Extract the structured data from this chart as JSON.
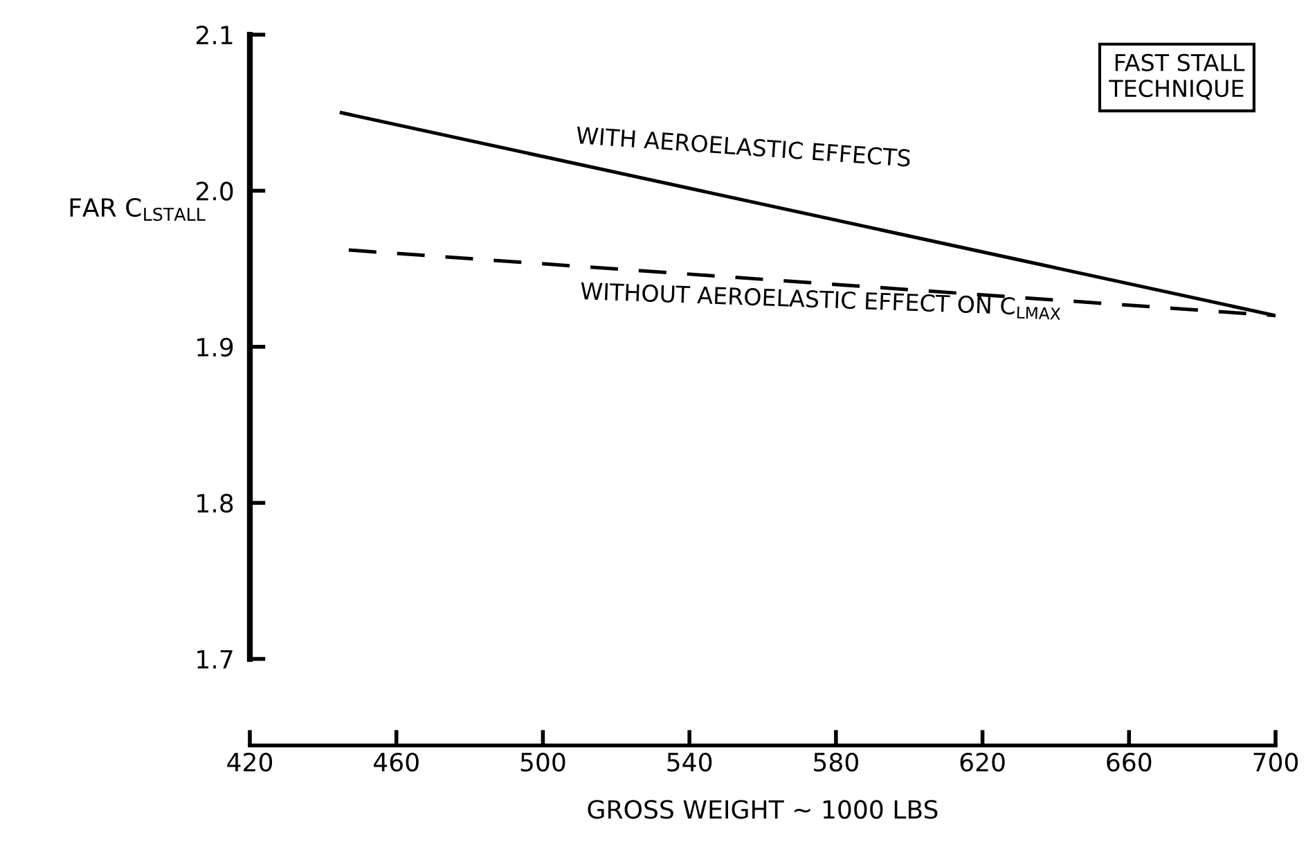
{
  "chart_data": {
    "type": "line",
    "xlabel": "GROSS WEIGHT ~ 1000 LBS",
    "ylabel": "FAR C$_{LSTALL}$",
    "xlim": [
      420,
      700
    ],
    "xticks": [
      420,
      460,
      500,
      540,
      580,
      620,
      660,
      700
    ],
    "ylim": [
      1.7,
      2.1
    ],
    "yticks": [
      1.7,
      1.8,
      1.9,
      {
        "value": 2.0,
        "label": "2.0"
      },
      2.1
    ],
    "grid": false,
    "legend": false,
    "series": [
      {
        "name": "WITH AEROELASTIC EFFECTS",
        "color": "#000000",
        "line_style": "solid",
        "x": [
          445,
          700
        ],
        "values": [
          2.05,
          1.92
        ]
      },
      {
        "name": "WITHOUT AEROELASTIC EFFECT ON C$_{LMAX}$",
        "color": "#000000",
        "line_style": "dashed",
        "x": [
          447,
          700
        ],
        "values": [
          1.962,
          1.92
        ]
      }
    ],
    "annotations": [
      "FAST STALL\nTECHNIQUE"
    ]
  }
}
